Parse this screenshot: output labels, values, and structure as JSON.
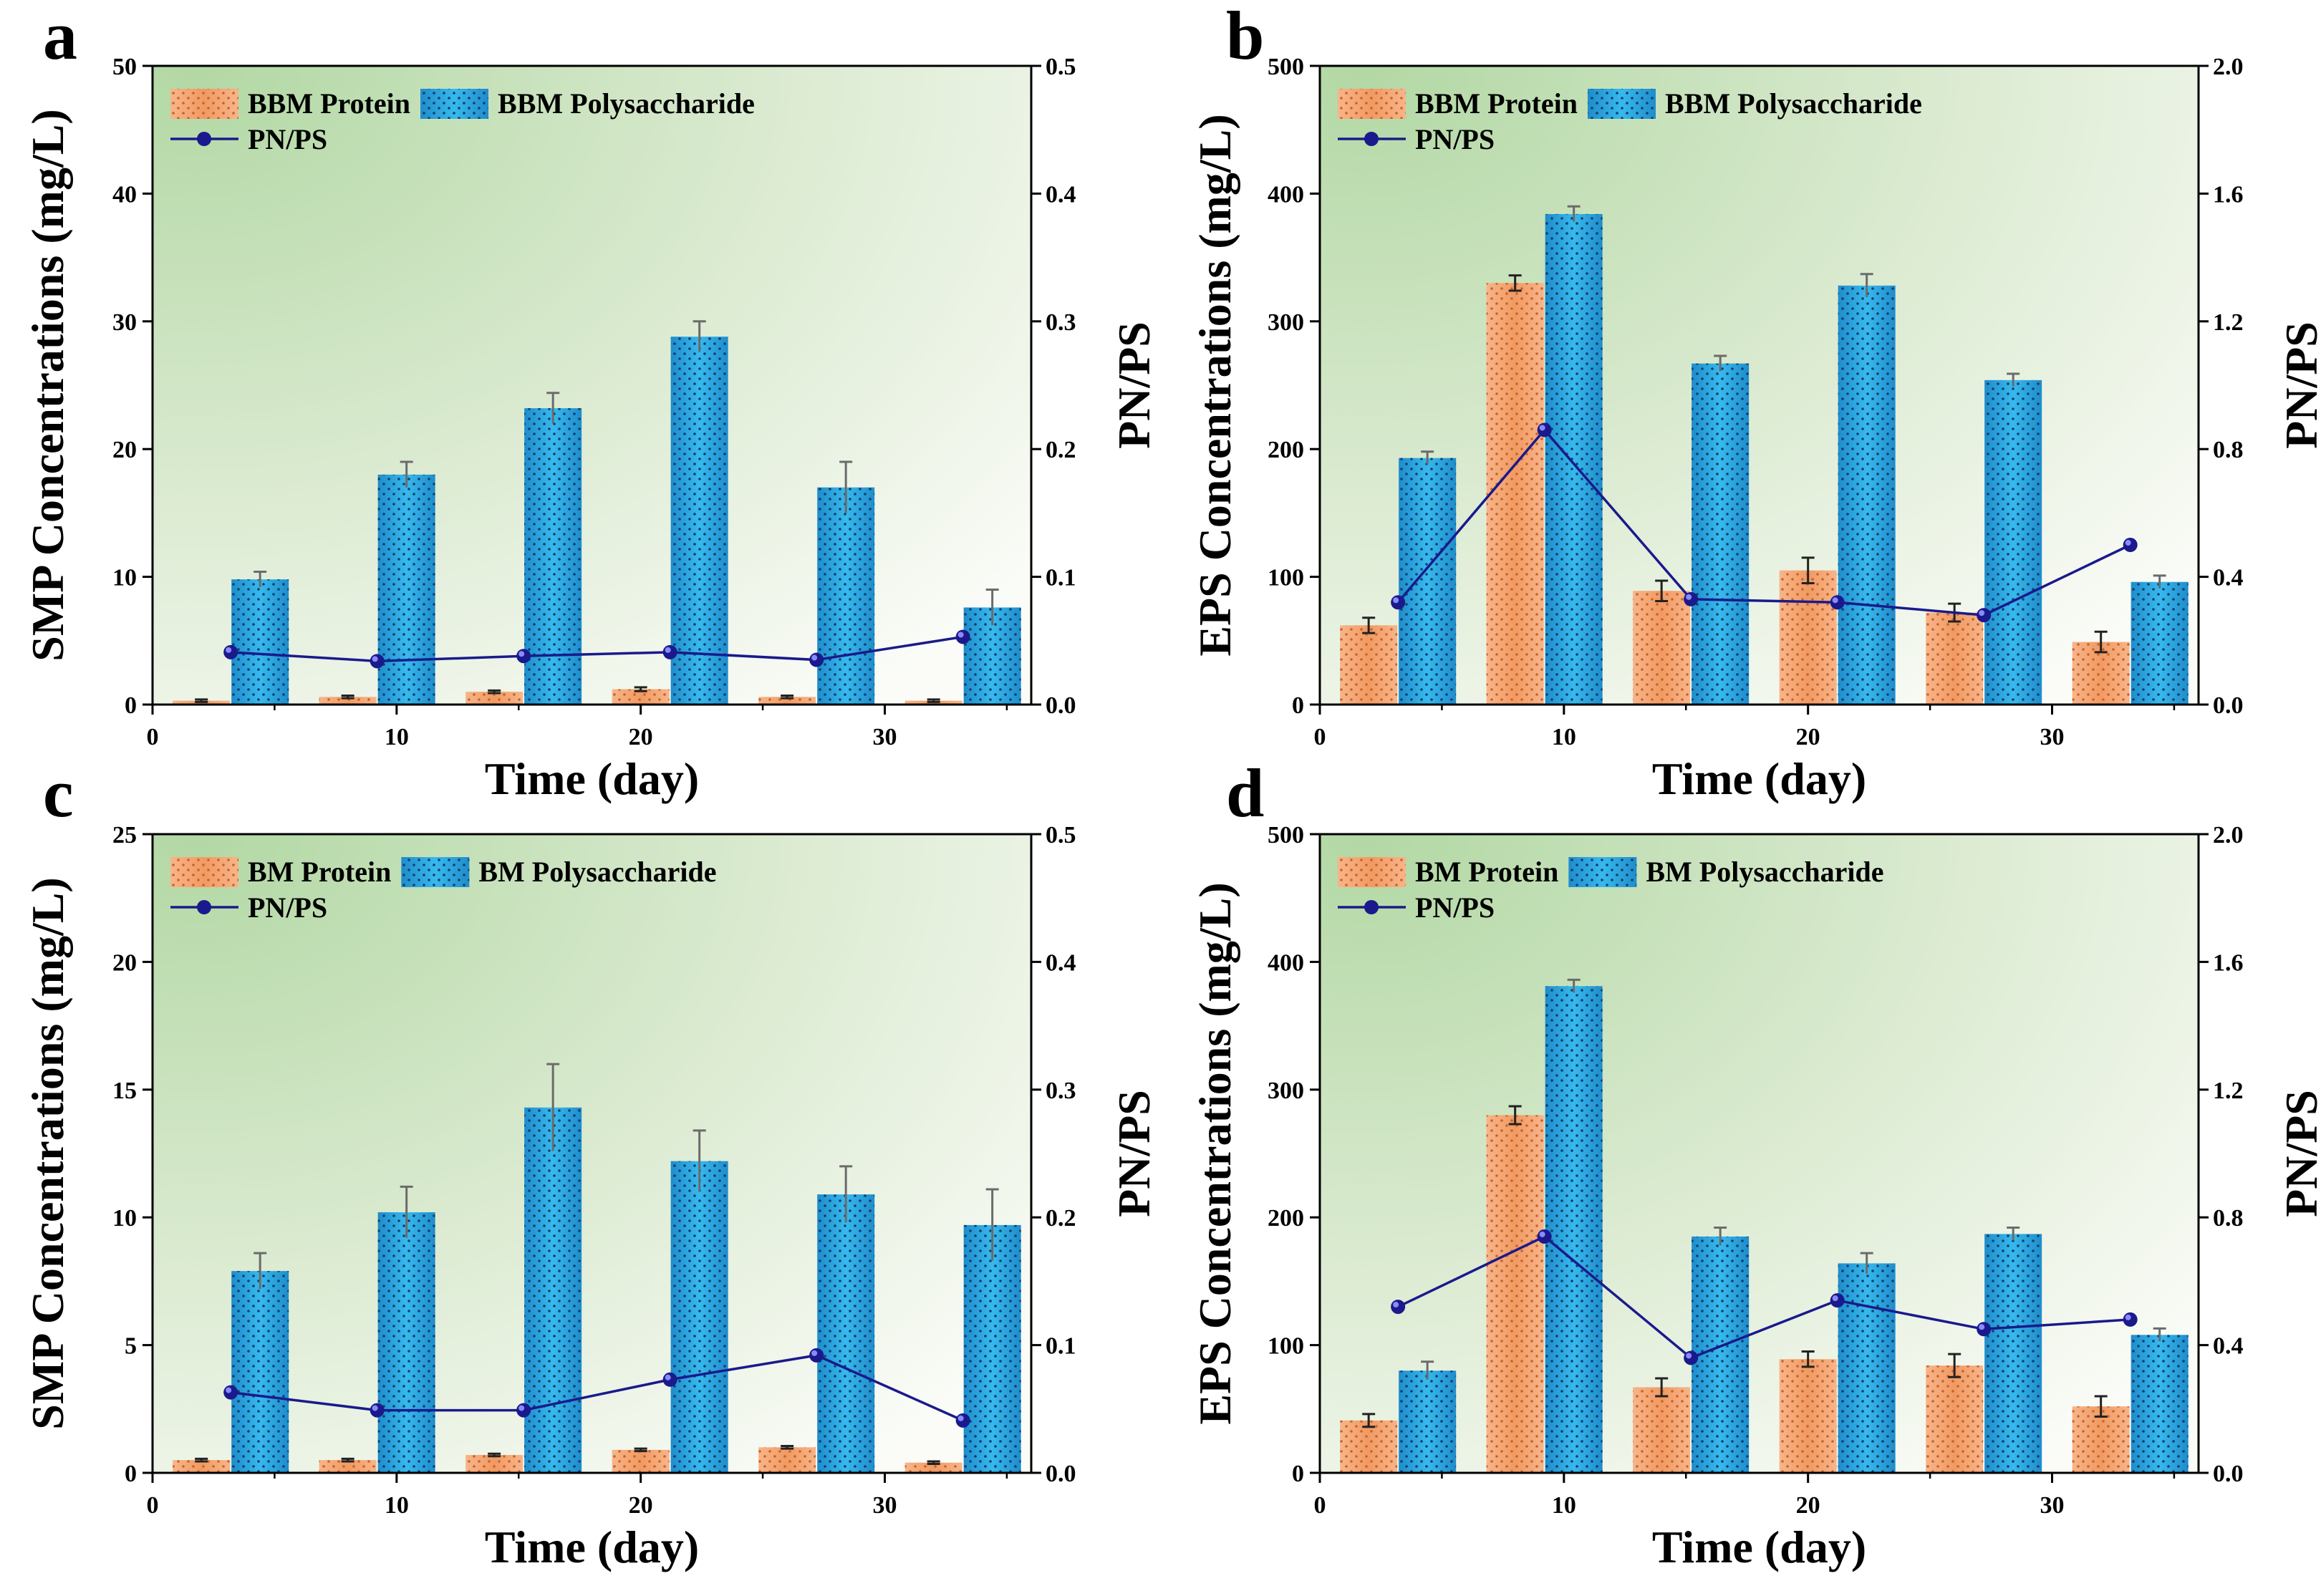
{
  "colors": {
    "protein": "#f4a06a",
    "polysaccharide": "#2aa9e0",
    "ratio_line": "#1a1a8c",
    "plot_bg_light": "#f5f8ef",
    "plot_bg_green": "#b9dcae"
  },
  "chart_data": [
    {
      "panel": "a",
      "type": "bar",
      "x": [
        2,
        8,
        14,
        20,
        26,
        32
      ],
      "xlim": [
        0,
        36
      ],
      "xticks": [
        0,
        10,
        20,
        30
      ],
      "xlabel": "Time (day)",
      "ylabel": "SMP Concentrations (mg/L)",
      "ylim": [
        0,
        50
      ],
      "yticks": [
        0,
        10,
        20,
        30,
        40,
        50
      ],
      "y2label": "PN/PS",
      "y2lim": [
        0,
        0.5
      ],
      "y2ticks": [
        "0.0",
        "0.1",
        "0.2",
        "0.3",
        "0.4",
        "0.5"
      ],
      "series": [
        {
          "name": "BBM Protein",
          "kind": "bar",
          "values": [
            0.3,
            0.6,
            1.0,
            1.2,
            0.6,
            0.3
          ],
          "errors": [
            0.1,
            0.1,
            0.1,
            0.15,
            0.1,
            0.1
          ]
        },
        {
          "name": "BBM Polysaccharide",
          "kind": "bar",
          "values": [
            9.8,
            18.0,
            23.2,
            28.8,
            17.0,
            7.6
          ],
          "errors": [
            0.6,
            1.0,
            1.2,
            1.2,
            2.0,
            1.4
          ]
        },
        {
          "name": "PN/PS",
          "kind": "line",
          "axis": "right",
          "values": [
            0.041,
            0.034,
            0.038,
            0.041,
            0.035,
            0.053
          ]
        }
      ]
    },
    {
      "panel": "b",
      "type": "bar",
      "x": [
        2,
        8,
        14,
        20,
        26,
        32
      ],
      "xlim": [
        0,
        36
      ],
      "xticks": [
        0,
        10,
        20,
        30
      ],
      "xlabel": "Time (day)",
      "ylabel": "EPS Concentrations (mg/L)",
      "ylim": [
        0,
        500
      ],
      "yticks": [
        0,
        100,
        200,
        300,
        400,
        500
      ],
      "y2label": "PN/PS",
      "y2lim": [
        0,
        2.0
      ],
      "y2ticks": [
        "0.0",
        "0.4",
        "0.8",
        "1.2",
        "1.6",
        "2.0"
      ],
      "series": [
        {
          "name": "BBM Protein",
          "kind": "bar",
          "values": [
            62,
            330,
            89,
            105,
            72,
            49
          ],
          "errors": [
            6,
            6,
            8,
            10,
            7,
            8
          ]
        },
        {
          "name": "BBM Polysaccharide",
          "kind": "bar",
          "values": [
            193,
            384,
            267,
            328,
            254,
            96
          ],
          "errors": [
            5,
            6,
            6,
            9,
            5,
            5
          ]
        },
        {
          "name": "PN/PS",
          "kind": "line",
          "axis": "right",
          "values": [
            0.32,
            0.86,
            0.33,
            0.32,
            0.28,
            0.5
          ]
        }
      ]
    },
    {
      "panel": "c",
      "type": "bar",
      "x": [
        2,
        8,
        14,
        20,
        26,
        32
      ],
      "xlim": [
        0,
        36
      ],
      "xticks": [
        0,
        10,
        20,
        30
      ],
      "xlabel": "Time (day)",
      "ylabel": "SMP Concentrations (mg/L)",
      "ylim": [
        0,
        25
      ],
      "yticks": [
        0,
        5,
        10,
        15,
        20,
        25
      ],
      "y2label": "PN/PS",
      "y2lim": [
        0,
        0.5
      ],
      "y2ticks": [
        "0.0",
        "0.1",
        "0.2",
        "0.3",
        "0.4",
        "0.5"
      ],
      "series": [
        {
          "name": "BM Protein",
          "kind": "bar",
          "values": [
            0.5,
            0.5,
            0.7,
            0.9,
            1.0,
            0.4
          ],
          "errors": [
            0.05,
            0.05,
            0.05,
            0.05,
            0.05,
            0.05
          ]
        },
        {
          "name": "BM Polysaccharide",
          "kind": "bar",
          "values": [
            7.9,
            10.2,
            14.3,
            12.2,
            10.9,
            9.7
          ],
          "errors": [
            0.7,
            1.0,
            1.7,
            1.2,
            1.1,
            1.4
          ]
        },
        {
          "name": "PN/PS",
          "kind": "line",
          "axis": "right",
          "values": [
            0.063,
            0.049,
            0.049,
            0.073,
            0.092,
            0.041
          ]
        }
      ]
    },
    {
      "panel": "d",
      "type": "bar",
      "x": [
        2,
        8,
        14,
        20,
        26,
        32
      ],
      "xlim": [
        0,
        36
      ],
      "xticks": [
        0,
        10,
        20,
        30
      ],
      "xlabel": "Time (day)",
      "ylabel": "EPS Concentrations (mg/L)",
      "ylim": [
        0,
        500
      ],
      "yticks": [
        0,
        100,
        200,
        300,
        400,
        500
      ],
      "y2label": "PN/PS",
      "y2lim": [
        0,
        2.0
      ],
      "y2ticks": [
        "0.0",
        "0.4",
        "0.8",
        "1.2",
        "1.6",
        "2.0"
      ],
      "series": [
        {
          "name": "BM Protein",
          "kind": "bar",
          "values": [
            41,
            280,
            67,
            89,
            84,
            52
          ],
          "errors": [
            5,
            7,
            7,
            6,
            9,
            8
          ]
        },
        {
          "name": "BM Polysaccharide",
          "kind": "bar",
          "values": [
            80,
            381,
            185,
            164,
            187,
            108
          ],
          "errors": [
            7,
            5,
            7,
            8,
            5,
            5
          ]
        },
        {
          "name": "PN/PS",
          "kind": "line",
          "axis": "right",
          "values": [
            0.52,
            0.74,
            0.36,
            0.54,
            0.45,
            0.48
          ]
        }
      ]
    }
  ]
}
